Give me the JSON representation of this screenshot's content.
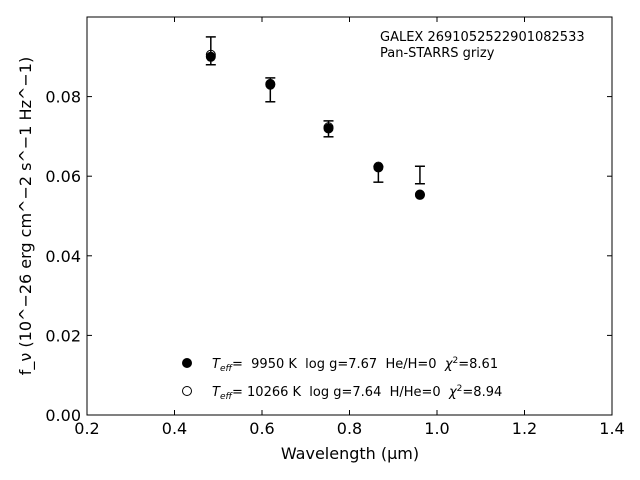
{
  "chart_data": {
    "type": "scatter",
    "xlabel": "Wavelength (μm)",
    "ylabel": "f_ν (10^−26 erg cm^−2 s^−1 Hz^−1)",
    "xlim": [
      0.2,
      1.4
    ],
    "ylim": [
      0.0,
      0.1
    ],
    "xticks": [
      0.2,
      0.4,
      0.6,
      0.8,
      1.0,
      1.2,
      1.4
    ],
    "xtick_labels": [
      "0.2",
      "0.4",
      "0.6",
      "0.8",
      "1.0",
      "1.2",
      "1.4"
    ],
    "yticks": [
      0.0,
      0.02,
      0.04,
      0.06,
      0.08
    ],
    "ytick_labels": [
      "0.00",
      "0.02",
      "0.04",
      "0.06",
      "0.08"
    ],
    "annotation": [
      "GALEX 2691052522901082533",
      "Pan-STARRS grizy"
    ],
    "observed": {
      "x": [
        0.483,
        0.619,
        0.752,
        0.866,
        0.961
      ],
      "y": [
        0.0915,
        0.0817,
        0.0719,
        0.0605,
        0.0603
      ],
      "yerr": [
        0.0035,
        0.003,
        0.002,
        0.002,
        0.0022
      ]
    },
    "series": [
      {
        "marker": "filled-circle",
        "x": [
          0.483,
          0.619,
          0.752,
          0.866,
          0.961
        ],
        "y": [
          0.09,
          0.083,
          0.072,
          0.0622,
          0.0553
        ],
        "legend": {
          "param": "eff",
          "value": "=  9950 K  log g=7.67  He/H=0  ",
          "chi": "χ",
          "chi_value": "=8.61"
        }
      },
      {
        "marker": "open-circle",
        "x": [
          0.483,
          0.619,
          0.752,
          0.866,
          0.961
        ],
        "y": [
          0.0905,
          0.0832,
          0.0723,
          0.0624,
          0.0554
        ],
        "legend": {
          "param": "eff",
          "value": "= 10266 K  log g=7.64  H/He=0  ",
          "chi": "χ",
          "chi_value": "=8.94"
        }
      }
    ],
    "legend_position": "lower-center",
    "grid": false
  }
}
